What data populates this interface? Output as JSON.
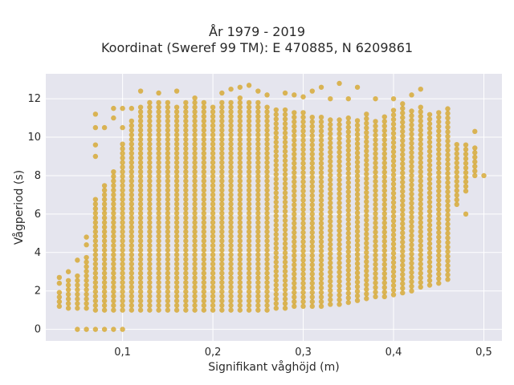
{
  "chart_data": {
    "type": "scatter",
    "title": "År 1979 - 2019",
    "subtitle": "Koordinat (Sweref 99 TM): E 470885, N 6209861",
    "xlabel": "Signifikant våghöjd (m)",
    "ylabel": "Vågperiod (s)",
    "xlim": [
      0.015,
      0.52
    ],
    "ylim": [
      -0.6,
      13.3
    ],
    "x_ticks": [
      "0,1",
      "0,2",
      "0,3",
      "0,4",
      "0,5"
    ],
    "x_tick_values": [
      0.1,
      0.2,
      0.3,
      0.4,
      0.5
    ],
    "y_ticks": [
      "0",
      "2",
      "4",
      "6",
      "8",
      "10",
      "12"
    ],
    "y_tick_values": [
      0,
      2,
      4,
      6,
      8,
      10,
      12
    ],
    "grid": true,
    "marker_color": "#d4a017",
    "background_color": "#e5e5ee",
    "x_step": 0.01,
    "columns": [
      {
        "x": 0.03,
        "y_min": 1.2,
        "y_max": 2.0,
        "extra": [
          2.4,
          2.7
        ]
      },
      {
        "x": 0.04,
        "y_min": 1.1,
        "y_max": 2.6,
        "extra": [
          3.0
        ]
      },
      {
        "x": 0.05,
        "y_min": 1.1,
        "y_max": 3.0,
        "extra": [
          0,
          3.6
        ]
      },
      {
        "x": 0.06,
        "y_min": 1.1,
        "y_max": 3.8,
        "extra": [
          0,
          4.4,
          4.8
        ]
      },
      {
        "x": 0.07,
        "y_min": 1.0,
        "y_max": 6.8,
        "extra": [
          0,
          9.0,
          9.6,
          10.5,
          11.2
        ]
      },
      {
        "x": 0.08,
        "y_min": 1.0,
        "y_max": 7.6,
        "extra": [
          0,
          10.5
        ]
      },
      {
        "x": 0.09,
        "y_min": 1.0,
        "y_max": 8.4,
        "extra": [
          0,
          11.0,
          11.5
        ]
      },
      {
        "x": 0.1,
        "y_min": 1.0,
        "y_max": 9.8,
        "extra": [
          0,
          10.5,
          11.5
        ]
      },
      {
        "x": 0.11,
        "y_min": 1.0,
        "y_max": 11.0,
        "extra": [
          11.5
        ]
      },
      {
        "x": 0.12,
        "y_min": 1.0,
        "y_max": 11.6,
        "extra": [
          12.4
        ]
      },
      {
        "x": 0.13,
        "y_min": 1.0,
        "y_max": 11.8,
        "extra": []
      },
      {
        "x": 0.14,
        "y_min": 1.0,
        "y_max": 11.8,
        "extra": [
          12.3
        ]
      },
      {
        "x": 0.15,
        "y_min": 1.0,
        "y_max": 12.0,
        "extra": []
      },
      {
        "x": 0.16,
        "y_min": 1.0,
        "y_max": 11.6,
        "extra": [
          12.4
        ]
      },
      {
        "x": 0.17,
        "y_min": 1.0,
        "y_max": 11.8,
        "extra": []
      },
      {
        "x": 0.18,
        "y_min": 1.0,
        "y_max": 12.2,
        "extra": []
      },
      {
        "x": 0.19,
        "y_min": 1.0,
        "y_max": 11.8,
        "extra": []
      },
      {
        "x": 0.2,
        "y_min": 1.0,
        "y_max": 11.6,
        "extra": []
      },
      {
        "x": 0.21,
        "y_min": 1.0,
        "y_max": 11.8,
        "extra": [
          12.3
        ]
      },
      {
        "x": 0.22,
        "y_min": 1.0,
        "y_max": 12.0,
        "extra": [
          12.5
        ]
      },
      {
        "x": 0.23,
        "y_min": 1.0,
        "y_max": 12.2,
        "extra": [
          12.6
        ]
      },
      {
        "x": 0.24,
        "y_min": 1.0,
        "y_max": 12.0,
        "extra": [
          12.7
        ]
      },
      {
        "x": 0.25,
        "y_min": 1.0,
        "y_max": 11.8,
        "extra": [
          12.4
        ]
      },
      {
        "x": 0.26,
        "y_min": 1.0,
        "y_max": 11.6,
        "extra": [
          12.2
        ]
      },
      {
        "x": 0.27,
        "y_min": 1.1,
        "y_max": 11.6,
        "extra": []
      },
      {
        "x": 0.28,
        "y_min": 1.1,
        "y_max": 11.6,
        "extra": [
          12.3
        ]
      },
      {
        "x": 0.29,
        "y_min": 1.2,
        "y_max": 11.4,
        "extra": [
          12.2
        ]
      },
      {
        "x": 0.3,
        "y_min": 1.2,
        "y_max": 11.4,
        "extra": [
          12.1
        ]
      },
      {
        "x": 0.31,
        "y_min": 1.2,
        "y_max": 11.2,
        "extra": [
          12.4
        ]
      },
      {
        "x": 0.32,
        "y_min": 1.2,
        "y_max": 11.2,
        "extra": [
          12.6
        ]
      },
      {
        "x": 0.33,
        "y_min": 1.3,
        "y_max": 11.0,
        "extra": [
          12.0
        ]
      },
      {
        "x": 0.34,
        "y_min": 1.3,
        "y_max": 11.0,
        "extra": [
          12.8
        ]
      },
      {
        "x": 0.35,
        "y_min": 1.4,
        "y_max": 11.2,
        "extra": [
          12.0
        ]
      },
      {
        "x": 0.36,
        "y_min": 1.5,
        "y_max": 11.0,
        "extra": [
          12.6
        ]
      },
      {
        "x": 0.37,
        "y_min": 1.6,
        "y_max": 11.2,
        "extra": []
      },
      {
        "x": 0.38,
        "y_min": 1.7,
        "y_max": 11.0,
        "extra": [
          12.0
        ]
      },
      {
        "x": 0.39,
        "y_min": 1.7,
        "y_max": 11.2,
        "extra": []
      },
      {
        "x": 0.4,
        "y_min": 1.8,
        "y_max": 11.6,
        "extra": [
          12.0
        ]
      },
      {
        "x": 0.41,
        "y_min": 1.9,
        "y_max": 11.8,
        "extra": []
      },
      {
        "x": 0.42,
        "y_min": 2.0,
        "y_max": 11.4,
        "extra": [
          12.2
        ]
      },
      {
        "x": 0.43,
        "y_min": 2.2,
        "y_max": 11.6,
        "extra": [
          12.5
        ]
      },
      {
        "x": 0.44,
        "y_min": 2.3,
        "y_max": 11.2,
        "extra": []
      },
      {
        "x": 0.45,
        "y_min": 2.4,
        "y_max": 11.4,
        "extra": []
      },
      {
        "x": 0.46,
        "y_min": 2.6,
        "y_max": 11.6,
        "extra": []
      },
      {
        "x": 0.47,
        "y_min": 6.5,
        "y_max": 9.8,
        "extra": []
      },
      {
        "x": 0.48,
        "y_min": 7.2,
        "y_max": 9.6,
        "extra": [
          6.0
        ]
      },
      {
        "x": 0.49,
        "y_min": 8.0,
        "y_max": 9.6,
        "extra": [
          10.3
        ]
      },
      {
        "x": 0.5,
        "y_min": 8.0,
        "y_max": 8.0,
        "extra": []
      }
    ]
  }
}
